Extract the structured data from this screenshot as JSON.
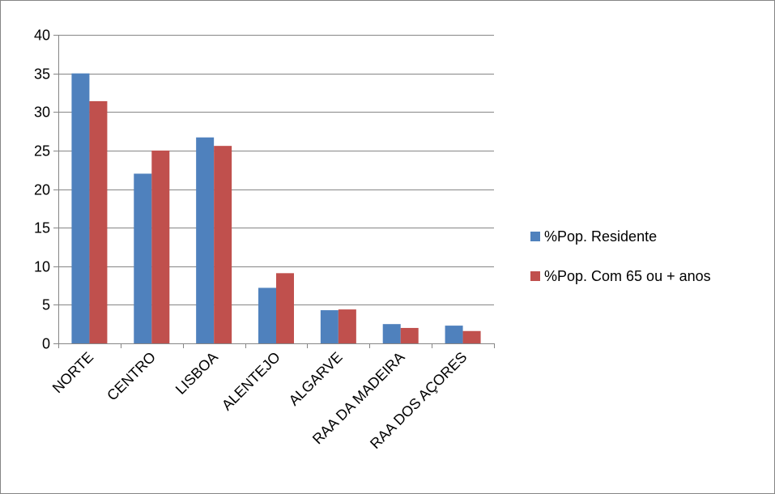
{
  "chart_data": {
    "type": "bar",
    "categories": [
      "NORTE",
      "CENTRO",
      "LISBOA",
      "ALENTEJO",
      "ALGARVE",
      "RAA DA MADEIRA",
      "RAA DOS AÇORES"
    ],
    "series": [
      {
        "name": "%Pop. Residente",
        "color": "#4F81BD",
        "values": [
          35.0,
          22.0,
          26.7,
          7.2,
          4.3,
          2.5,
          2.3
        ]
      },
      {
        "name": "%Pop. Com 65 ou + anos",
        "color": "#C0504D",
        "values": [
          31.4,
          25.0,
          25.6,
          9.1,
          4.4,
          2.0,
          1.6
        ]
      }
    ],
    "title": "",
    "xlabel": "",
    "ylabel": "",
    "ylim": [
      0,
      40
    ],
    "yticks": [
      "0",
      "5",
      "10",
      "15",
      "20",
      "25",
      "30",
      "35",
      "40"
    ],
    "grid": true,
    "legend_position": "right"
  }
}
